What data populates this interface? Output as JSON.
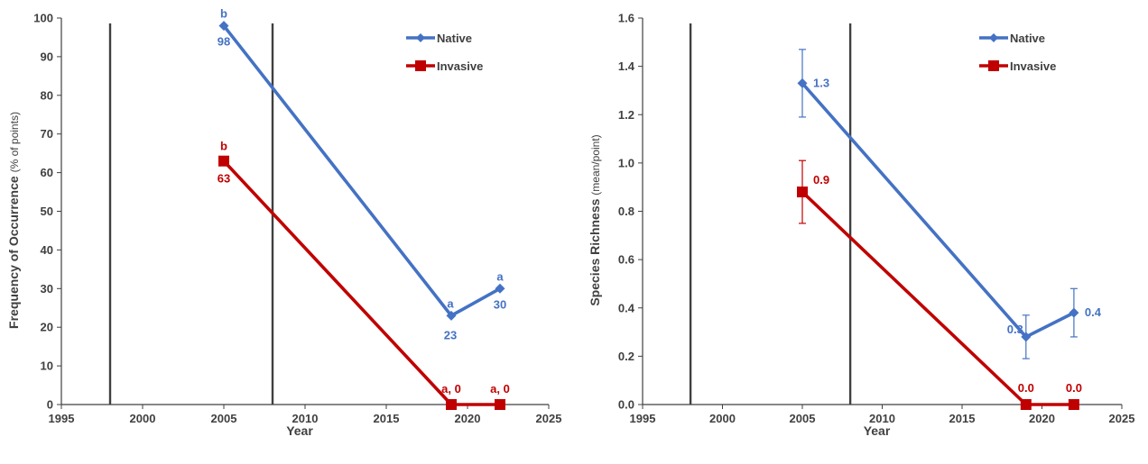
{
  "colors": {
    "native": "#4472C4",
    "invasive": "#C00000",
    "axis": "#404040",
    "refline": "#404040"
  },
  "chart_data": [
    {
      "type": "line",
      "xlabel": "Year",
      "ylabel": "Frequency of Occurrence",
      "ylabel_unit": "(% of points)",
      "xlim": [
        1995,
        2025
      ],
      "ylim": [
        0,
        100
      ],
      "x_ticks": [
        "1995",
        "2000",
        "2005",
        "2010",
        "2015",
        "2020",
        "2025"
      ],
      "y_ticks": [
        "0",
        "10",
        "20",
        "30",
        "40",
        "50",
        "60",
        "70",
        "80",
        "90",
        "100"
      ],
      "reference_lines_x": [
        1998,
        2008
      ],
      "legend_position": "top-right",
      "series": [
        {
          "name": "Native",
          "color": "#4472C4",
          "marker": "diamond",
          "x": [
            2005,
            2019,
            2022
          ],
          "y": [
            98,
            23,
            30
          ],
          "value_labels": [
            "98",
            "23",
            "30"
          ],
          "letter_labels": [
            "b",
            "a",
            "a"
          ]
        },
        {
          "name": "Invasive",
          "color": "#C00000",
          "marker": "square",
          "x": [
            2005,
            2019,
            2022
          ],
          "y": [
            63,
            0,
            0
          ],
          "value_labels": [
            "63",
            "",
            ""
          ],
          "letter_labels": [
            "b",
            "a, 0",
            "a, 0"
          ]
        }
      ]
    },
    {
      "type": "line",
      "xlabel": "Year",
      "ylabel": "Species Richness",
      "ylabel_unit": "(mean/point)",
      "xlim": [
        1995,
        2025
      ],
      "ylim": [
        0,
        1.6
      ],
      "x_ticks": [
        "1995",
        "2000",
        "2005",
        "2010",
        "2015",
        "2020",
        "2025"
      ],
      "y_ticks": [
        "0.0",
        "0.2",
        "0.4",
        "0.6",
        "0.8",
        "1.0",
        "1.2",
        "1.4",
        "1.6"
      ],
      "reference_lines_x": [
        1998,
        2008
      ],
      "legend_position": "top-right",
      "series": [
        {
          "name": "Native",
          "color": "#4472C4",
          "marker": "diamond",
          "x": [
            2005,
            2019,
            2022
          ],
          "y": [
            1.33,
            0.28,
            0.38
          ],
          "error": [
            0.14,
            0.09,
            0.1
          ],
          "value_labels": [
            "1.3",
            "0.3",
            "0.4"
          ]
        },
        {
          "name": "Invasive",
          "color": "#C00000",
          "marker": "square",
          "x": [
            2005,
            2019,
            2022
          ],
          "y": [
            0.88,
            0.0,
            0.0
          ],
          "error": [
            0.13,
            0,
            0
          ],
          "value_labels": [
            "0.9",
            "0.0",
            "0.0"
          ]
        }
      ]
    }
  ]
}
